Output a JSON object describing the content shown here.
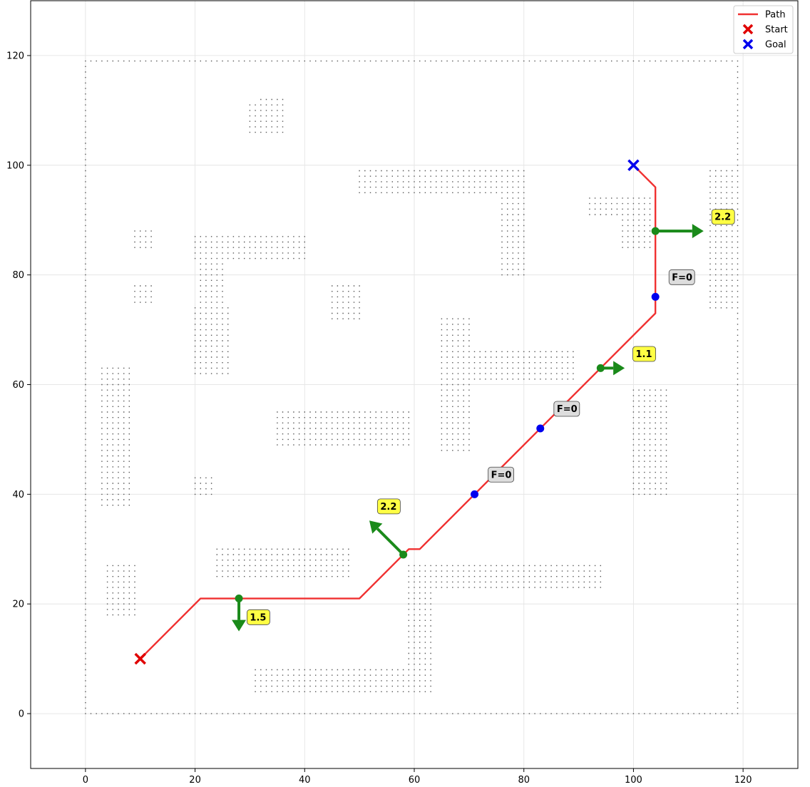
{
  "chart_data": {
    "type": "scatter",
    "xlim": [
      -10,
      130
    ],
    "ylim": [
      -10,
      130
    ],
    "xticks": [
      0,
      20,
      40,
      60,
      80,
      100,
      120
    ],
    "yticks": [
      0,
      20,
      40,
      60,
      80,
      100,
      120
    ],
    "grid": true,
    "legend_position": "top-right",
    "legend": [
      {
        "label": "Path",
        "marker": "line",
        "color": "#f03030"
      },
      {
        "label": "Start",
        "marker": "x",
        "color": "#e00000"
      },
      {
        "label": "Goal",
        "marker": "x",
        "color": "#0000ee"
      }
    ],
    "path": [
      [
        10,
        10
      ],
      [
        21,
        21
      ],
      [
        50,
        21
      ],
      [
        59,
        30
      ],
      [
        61,
        30
      ],
      [
        104,
        73
      ],
      [
        104,
        96
      ],
      [
        100,
        100
      ]
    ],
    "start": [
      10,
      10
    ],
    "goal": [
      100,
      100
    ],
    "force_points": [
      {
        "x": 28,
        "y": 21,
        "dx": 0,
        "dy": -1.5,
        "label": "1.5",
        "zero": false
      },
      {
        "x": 58,
        "y": 29,
        "dx": -1.55,
        "dy": 1.55,
        "label": "2.2",
        "zero": false
      },
      {
        "x": 71,
        "y": 40,
        "dx": 0,
        "dy": 0,
        "label": "F=0",
        "zero": true
      },
      {
        "x": 83,
        "y": 52,
        "dx": 0,
        "dy": 0,
        "label": "F=0",
        "zero": true
      },
      {
        "x": 94,
        "y": 63,
        "dx": 1.1,
        "dy": 0,
        "label": "1.1",
        "zero": false
      },
      {
        "x": 104,
        "y": 76,
        "dx": 0,
        "dy": 0,
        "label": "F=0",
        "zero": true
      },
      {
        "x": 104,
        "y": 88,
        "dx": 2.2,
        "dy": 0,
        "label": "2.2",
        "zero": false
      }
    ],
    "obstacles": [
      [
        0,
        119,
        0,
        0
      ],
      [
        0,
        119,
        119,
        119
      ],
      [
        0,
        0,
        0,
        119
      ],
      [
        119,
        119,
        0,
        119
      ],
      [
        30,
        36,
        106,
        111
      ],
      [
        32,
        36,
        111,
        112
      ],
      [
        50,
        80,
        95,
        99
      ],
      [
        76,
        80,
        80,
        95
      ],
      [
        92,
        104,
        91,
        94
      ],
      [
        98,
        104,
        85,
        91
      ],
      [
        114,
        119,
        74,
        99
      ],
      [
        9,
        12,
        85,
        88
      ],
      [
        9,
        12,
        75,
        78
      ],
      [
        20,
        40,
        83,
        87
      ],
      [
        21,
        25,
        74,
        83
      ],
      [
        20,
        26,
        62,
        74
      ],
      [
        45,
        50,
        72,
        78
      ],
      [
        65,
        70,
        48,
        72
      ],
      [
        70,
        89,
        61,
        66
      ],
      [
        35,
        59,
        49,
        55
      ],
      [
        3,
        8,
        38,
        63
      ],
      [
        20,
        23,
        40,
        43
      ],
      [
        100,
        106,
        40,
        59
      ],
      [
        24,
        48,
        25,
        30
      ],
      [
        59,
        63,
        4,
        27
      ],
      [
        63,
        94,
        23,
        27
      ],
      [
        31,
        63,
        4,
        8
      ],
      [
        4,
        9,
        18,
        27
      ]
    ]
  }
}
